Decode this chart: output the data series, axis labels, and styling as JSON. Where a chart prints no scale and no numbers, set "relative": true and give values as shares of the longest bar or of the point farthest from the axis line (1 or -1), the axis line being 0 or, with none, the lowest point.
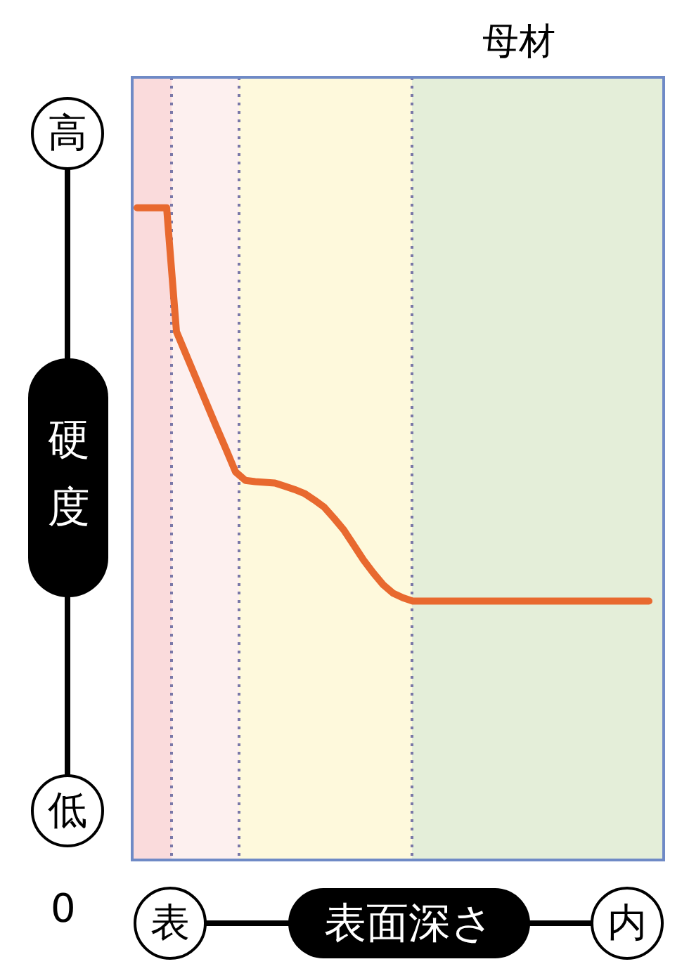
{
  "chart_data": {
    "type": "line",
    "relative": true,
    "xlabel": "表面深さ",
    "ylabel": "硬度",
    "categories": [
      null,
      null,
      null,
      null,
      null,
      null,
      null,
      null,
      null,
      null,
      null,
      null,
      null,
      null,
      null,
      null,
      null,
      null,
      null,
      null,
      null,
      null,
      null,
      null,
      null,
      null,
      null,
      null,
      null,
      null,
      null,
      null,
      null,
      null,
      null,
      null,
      null,
      null,
      null,
      null,
      null,
      null,
      null,
      null,
      null,
      null,
      null,
      null,
      null,
      null,
      null,
      null,
      null,
      null
    ],
    "series": [
      {
        "color": "#e8692f",
        "values": [
          1.0,
          1.0,
          1.0,
          1.0,
          0.81,
          0.774,
          0.738,
          0.702,
          0.666,
          0.631,
          0.595,
          0.582,
          0.58,
          0.579,
          0.578,
          0.573,
          0.568,
          0.562,
          0.552,
          0.541,
          0.524,
          0.506,
          0.483,
          0.46,
          0.44,
          0.422,
          0.409,
          0.402,
          0.397,
          0.397,
          0.397,
          0.397,
          0.397,
          0.397,
          0.397,
          0.397,
          0.397,
          0.397,
          0.397,
          0.397,
          0.397,
          0.397,
          0.397,
          0.397,
          0.397,
          0.397,
          0.397,
          0.397,
          0.397,
          0.397,
          0.397,
          0.397,
          0.397,
          null
        ]
      }
    ],
    "annotations": [
      "高",
      "低",
      "表",
      "内",
      "0",
      "母材"
    ],
    "marker": "none",
    "line_style": "solid"
  }
}
